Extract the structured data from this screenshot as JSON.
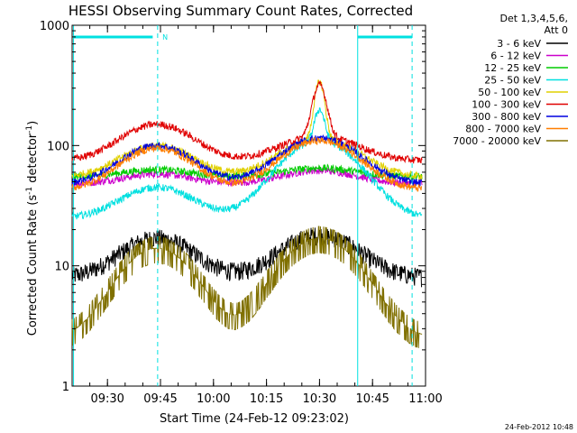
{
  "chart_data": {
    "type": "line",
    "title": "HESSI Observing Summary Count Rates, Corrected",
    "xlabel": "Start Time (24-Feb-12 09:23:02)",
    "ylabel_main": "Corrected Count Rate (s",
    "ylabel_sup1": "-1",
    "ylabel_mid": " detector",
    "ylabel_sup2": "-1",
    "ylabel_end": ")",
    "yscale": "log",
    "ylim": [
      1,
      1000
    ],
    "xlim_minutes": [
      -3,
      97
    ],
    "x_ticks_labels": [
      "09:30",
      "09:45",
      "10:00",
      "10:15",
      "10:30",
      "10:45",
      "11:00"
    ],
    "x_ticks_minutes": [
      7,
      22,
      37,
      52,
      67,
      82,
      97
    ],
    "y_ticks_labels": [
      "1",
      "10",
      "100",
      "1000"
    ],
    "y_ticks_values": [
      1,
      10,
      100,
      1000
    ],
    "legend_header": [
      "Det 1,3,4,5,6,",
      "Att 0"
    ],
    "legend_placement": "right",
    "series": [
      {
        "name": "3 - 6 keV",
        "color": "#000000",
        "base": 8,
        "peak1": 17,
        "peak2": 18
      },
      {
        "name": "6 - 12 keV",
        "color": "#cc00cc",
        "base": 48,
        "peak1": 58,
        "peak2": 62
      },
      {
        "name": "12 - 25 keV",
        "color": "#00cc00",
        "base": 55,
        "peak1": 63,
        "peak2": 65
      },
      {
        "name": "25 - 50 keV",
        "color": "#00e0e0",
        "base": 25,
        "peak1": 45,
        "peak2": 200
      },
      {
        "name": "50 - 100 keV",
        "color": "#e0d000",
        "base": 55,
        "peak1": 100,
        "peak2": 340
      },
      {
        "name": "100 - 300 keV",
        "color": "#e00000",
        "base": 75,
        "peak1": 150,
        "peak2": 320
      },
      {
        "name": "300 - 800 keV",
        "color": "#0000e0",
        "base": 48,
        "peak1": 100,
        "peak2": 115
      },
      {
        "name": "800 - 7000 keV",
        "color": "#ff7f00",
        "base": 43,
        "peak1": 95,
        "peak2": 110
      },
      {
        "name": "7000 - 20000 keV",
        "color": "#807000",
        "base": 2.5,
        "peak1": 14,
        "peak2": 17
      }
    ],
    "markers": [
      {
        "label": "N",
        "minute": 21
      }
    ],
    "timestamp": "24-Feb-2012 10:48"
  }
}
